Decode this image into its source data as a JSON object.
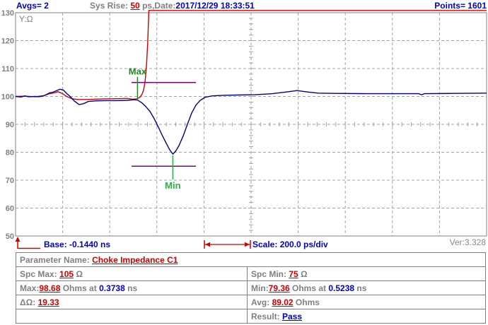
{
  "header": {
    "avgs": "Avgs= 2",
    "sys_rise_label": "Sys Rise: ",
    "sys_rise_value": "50",
    "date_label": " ps,Date:",
    "date_value": "2017/12/29 18:33:51",
    "points": "Points= 1601"
  },
  "chart_data": {
    "type": "line",
    "title": "",
    "ylabel": "Y:Ω",
    "xlabel": "",
    "ylim": [
      50,
      130
    ],
    "yticks": [
      130,
      120,
      110,
      100,
      90,
      80,
      70,
      60,
      50
    ],
    "x_base_ns": -0.144,
    "x_total_ns": 2.0,
    "x_divisions": 10,
    "x_scale_per_div": "200.0 ps/div",
    "grid": true,
    "grid_color": "#a3a3a3",
    "center_ohm": 90,
    "series": [
      {
        "name": "rise-reference-trace",
        "color": "#cc0000",
        "points": [
          [
            -0.144,
            100
          ],
          [
            -0.105,
            100.1
          ],
          [
            -0.06,
            99.9
          ],
          [
            -0.024,
            100.3
          ],
          [
            0.0,
            101.0
          ],
          [
            0.02,
            101.3
          ],
          [
            0.036,
            101.7
          ],
          [
            0.054,
            101.1
          ],
          [
            0.075,
            99.9
          ],
          [
            0.096,
            99.2
          ],
          [
            0.12,
            98.9
          ],
          [
            0.165,
            98.9
          ],
          [
            0.225,
            99.1
          ],
          [
            0.285,
            99.2
          ],
          [
            0.33,
            99.3
          ],
          [
            0.355,
            99.0
          ],
          [
            0.373,
            99.2
          ],
          [
            0.385,
            99.8
          ],
          [
            0.394,
            101.0
          ],
          [
            0.4,
            102.5
          ],
          [
            0.406,
            105.5
          ],
          [
            0.412,
            111
          ],
          [
            0.417,
            119
          ],
          [
            0.422,
            130.8
          ],
          [
            1.856,
            130.8
          ]
        ]
      },
      {
        "name": "impedance-trace",
        "color": "#00008b",
        "points": [
          [
            -0.144,
            100
          ],
          [
            -0.12,
            99.8
          ],
          [
            -0.105,
            100.2
          ],
          [
            -0.09,
            99.9
          ],
          [
            -0.06,
            100.0
          ],
          [
            -0.045,
            99.9
          ],
          [
            -0.024,
            100.2
          ],
          [
            0.0,
            101.3
          ],
          [
            0.01,
            101.4
          ],
          [
            0.022,
            101.8
          ],
          [
            0.045,
            102.6
          ],
          [
            0.06,
            102.2
          ],
          [
            0.075,
            100.9
          ],
          [
            0.09,
            99.8
          ],
          [
            0.105,
            98.4
          ],
          [
            0.126,
            97.1
          ],
          [
            0.144,
            97.4
          ],
          [
            0.165,
            98.2
          ],
          [
            0.195,
            98.4
          ],
          [
            0.24,
            98.5
          ],
          [
            0.285,
            98.5
          ],
          [
            0.33,
            98.6
          ],
          [
            0.361,
            98.8
          ],
          [
            0.3738,
            98.68
          ],
          [
            0.391,
            97.8
          ],
          [
            0.409,
            96.4
          ],
          [
            0.427,
            94.6
          ],
          [
            0.445,
            92.0
          ],
          [
            0.463,
            88.9
          ],
          [
            0.481,
            85.7
          ],
          [
            0.499,
            82.7
          ],
          [
            0.511,
            80.8
          ],
          [
            0.5238,
            79.36
          ],
          [
            0.535,
            80.3
          ],
          [
            0.55,
            82.4
          ],
          [
            0.568,
            85.9
          ],
          [
            0.586,
            90.1
          ],
          [
            0.604,
            94.1
          ],
          [
            0.622,
            96.9
          ],
          [
            0.64,
            98.6
          ],
          [
            0.661,
            99.7
          ],
          [
            0.691,
            100.2
          ],
          [
            0.736,
            100.4
          ],
          [
            0.796,
            100.5
          ],
          [
            0.871,
            100.6
          ],
          [
            0.946,
            101.0
          ],
          [
            1.006,
            101.6
          ],
          [
            1.051,
            102.1
          ],
          [
            1.096,
            101.6
          ],
          [
            1.141,
            101.2
          ],
          [
            1.216,
            101.1
          ],
          [
            1.351,
            101.0
          ],
          [
            1.472,
            101.0
          ],
          [
            1.568,
            101.0
          ],
          [
            1.58,
            100.6
          ],
          [
            1.592,
            101.0
          ],
          [
            1.712,
            101.1
          ],
          [
            1.856,
            101.2
          ]
        ]
      }
    ],
    "markers": {
      "max": {
        "label": "Max",
        "at_ns": 0.3738,
        "value_ohm": 98.68,
        "spc_line_ohm": 105,
        "color": "#1e8c1e"
      },
      "min": {
        "label": "Min",
        "at_ns": 0.5238,
        "value_ohm": 79.36,
        "spc_line_ohm": 75,
        "color": "#2fae4a"
      },
      "window_ns": [
        0.3485,
        0.6218
      ],
      "spc_line_color": "#800080"
    }
  },
  "footer": {
    "base": "Base: -0.1440 ns",
    "scale": "Scale: 200.0 ps/div",
    "version": "Ver:3.328"
  },
  "table": {
    "parameter": {
      "label": "Parameter Name: ",
      "value": "Choke Impedance C1"
    },
    "spc_max": {
      "label": "Spc Max: ",
      "value": "105",
      "unit": " Ω"
    },
    "spc_min": {
      "label": "Spc Min: ",
      "value": "75",
      "unit": " Ω"
    },
    "max": {
      "label": "Max:",
      "value": "98.68",
      "mid": " Ohms at ",
      "time": "0.3738",
      "unit": " ns"
    },
    "min": {
      "label": "Min:",
      "value": "79.36",
      "mid": " Ohms at ",
      "time": "0.5238",
      "unit": " ns"
    },
    "delta": {
      "label": "ΔΩ: ",
      "value": "19.33"
    },
    "avg": {
      "label": "Avg: ",
      "value": "89.02",
      "unit": " Ohms"
    },
    "result": {
      "label": "Result: ",
      "value": "Pass"
    }
  }
}
